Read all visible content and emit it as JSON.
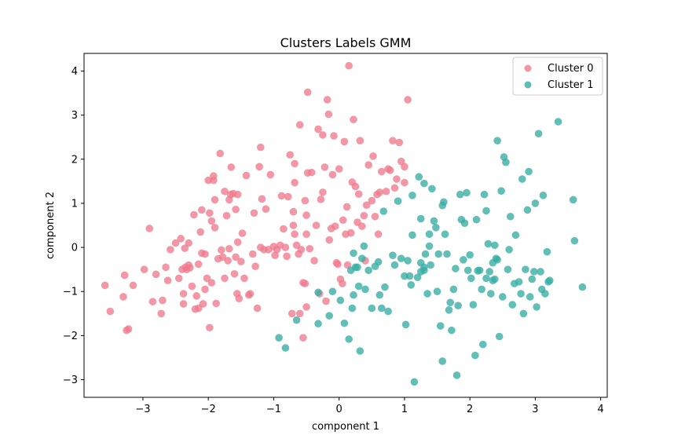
{
  "chart_data": {
    "type": "scatter",
    "title": "Clusters Labels GMM",
    "xlabel": "component 1",
    "ylabel": "component 2",
    "xlim": [
      -3.9,
      4.1
    ],
    "ylim": [
      -3.4,
      4.4
    ],
    "xticks": [
      -3,
      -2,
      -1,
      0,
      1,
      2,
      3,
      4
    ],
    "yticks": [
      -3,
      -2,
      -1,
      0,
      1,
      2,
      3,
      4
    ],
    "xtick_labels": [
      "−3",
      "−2",
      "−1",
      "0",
      "1",
      "2",
      "3",
      "4"
    ],
    "ytick_labels": [
      "−3",
      "−2",
      "−1",
      "0",
      "1",
      "2",
      "3",
      "4"
    ],
    "grid": false,
    "legend_position": "top-right",
    "series": [
      {
        "name": "Cluster 0",
        "color": "#f07a8d",
        "points": [
          [
            -3.58,
            -0.86
          ],
          [
            -3.5,
            -1.45
          ],
          [
            -3.3,
            -1.12
          ],
          [
            -3.28,
            -0.63
          ],
          [
            -3.25,
            -1.88
          ],
          [
            -3.22,
            -1.85
          ],
          [
            -3.15,
            -0.86
          ],
          [
            -2.98,
            -0.5
          ],
          [
            -2.9,
            0.43
          ],
          [
            -2.85,
            -1.23
          ],
          [
            -2.8,
            -0.61
          ],
          [
            -2.72,
            -1.5
          ],
          [
            -2.7,
            -1.2
          ],
          [
            -2.65,
            -0.45
          ],
          [
            -2.62,
            -0.75
          ],
          [
            -2.58,
            -0.05
          ],
          [
            -2.5,
            0.1
          ],
          [
            -2.45,
            -0.7
          ],
          [
            -2.42,
            0.2
          ],
          [
            -2.4,
            -0.5
          ],
          [
            -2.38,
            -1.05
          ],
          [
            -2.38,
            -1.28
          ],
          [
            -2.36,
            -0.02
          ],
          [
            -2.35,
            -0.45
          ],
          [
            -2.33,
            -0.5
          ],
          [
            -2.3,
            0.1
          ],
          [
            -2.3,
            -0.4
          ],
          [
            -2.28,
            -0.46
          ],
          [
            -2.25,
            -0.88
          ],
          [
            -2.22,
            0.74
          ],
          [
            -2.2,
            -1.4
          ],
          [
            -2.18,
            -1.1
          ],
          [
            -2.15,
            -0.38
          ],
          [
            -2.15,
            -1.38
          ],
          [
            -2.12,
            0.35
          ],
          [
            -2.1,
            0.85
          ],
          [
            -2.1,
            -0.13
          ],
          [
            -2.08,
            -1.28
          ],
          [
            -2.05,
            -0.95
          ],
          [
            -2.05,
            -0.15
          ],
          [
            -2.02,
            -0.7
          ],
          [
            -2,
            1.52
          ],
          [
            -1.98,
            -1.82
          ],
          [
            -1.98,
            0.78
          ],
          [
            -1.95,
            0.6
          ],
          [
            -1.95,
            -0.8
          ],
          [
            -1.92,
            1.62
          ],
          [
            -1.92,
            1.52
          ],
          [
            -1.9,
            0.45
          ],
          [
            -1.9,
            1.08
          ],
          [
            -1.88,
            -1.27
          ],
          [
            -1.85,
            -0.26
          ],
          [
            -1.82,
            2.13
          ],
          [
            -1.8,
            -0.06
          ],
          [
            -1.78,
            -0.22
          ],
          [
            -1.75,
            1.27
          ],
          [
            -1.75,
            -0.7
          ],
          [
            -1.72,
            0.72
          ],
          [
            -1.7,
            -0.3
          ],
          [
            -1.68,
            1.08
          ],
          [
            -1.68,
            -0.03
          ],
          [
            -1.66,
            1.2
          ],
          [
            -1.65,
            1.82
          ],
          [
            -1.62,
            1.22
          ],
          [
            -1.6,
            -0.6
          ],
          [
            -1.58,
            -0.22
          ],
          [
            -1.58,
            0.86
          ],
          [
            -1.56,
            -1.05
          ],
          [
            -1.55,
            1.2
          ],
          [
            -1.55,
            0.12
          ],
          [
            -1.53,
            -1.16
          ],
          [
            -1.5,
            -0.32
          ],
          [
            -1.48,
            0.32
          ],
          [
            -1.45,
            -0.7
          ],
          [
            -1.42,
            1.63
          ],
          [
            -1.38,
            -1.08
          ],
          [
            -1.36,
            -1.05
          ],
          [
            -1.32,
            -0.15
          ],
          [
            -1.3,
            0.78
          ],
          [
            -1.28,
            -0.43
          ],
          [
            -1.25,
            -1.38
          ],
          [
            -1.22,
            1.83
          ],
          [
            -1.2,
            2.27
          ],
          [
            -1.2,
            -0.0
          ],
          [
            -1.18,
            1.1
          ],
          [
            -1.15,
            -0.05
          ],
          [
            -1.12,
            0.87
          ],
          [
            -1.08,
            -0.05
          ],
          [
            -1.05,
            1.65
          ],
          [
            -1.0,
            0.02
          ],
          [
            -0.98,
            -0.18
          ],
          [
            -0.95,
            -0.05
          ],
          [
            -0.9,
            0.05
          ],
          [
            -0.88,
            1.17
          ],
          [
            -0.85,
            0.42
          ],
          [
            -0.82,
            0.0
          ],
          [
            -0.8,
            -0.2
          ],
          [
            -0.78,
            1.15
          ],
          [
            -0.75,
            2.1
          ],
          [
            -0.72,
            -1.5
          ],
          [
            -0.7,
            0.81
          ],
          [
            -0.7,
            0.5
          ],
          [
            -0.68,
            0.3
          ],
          [
            -0.68,
            1.47
          ],
          [
            -0.68,
            1.9
          ],
          [
            -0.65,
            0.05
          ],
          [
            -0.62,
            -0.15
          ],
          [
            -0.6,
            -1.5
          ],
          [
            -0.6,
            2.78
          ],
          [
            -0.58,
            -0.05
          ],
          [
            -0.55,
            -2.05
          ],
          [
            -0.55,
            -0.8
          ],
          [
            -0.52,
            -0.82
          ],
          [
            -0.52,
            1.06
          ],
          [
            -0.5,
            0.73
          ],
          [
            -0.5,
            0.3
          ],
          [
            -0.5,
            -1.35
          ],
          [
            -0.48,
            1.69
          ],
          [
            -0.48,
            3.52
          ],
          [
            -0.45,
            -0.03
          ],
          [
            -0.42,
            1.7
          ],
          [
            -0.38,
            -0.3
          ],
          [
            -0.35,
            0.5
          ],
          [
            -0.32,
            2.68
          ],
          [
            -0.3,
            -1.05
          ],
          [
            -0.28,
            1.09
          ],
          [
            -0.25,
            1.25
          ],
          [
            -0.25,
            2.55
          ],
          [
            -0.22,
            1.82
          ],
          [
            -0.2,
            -1.22
          ],
          [
            -0.18,
            3.35
          ],
          [
            -0.16,
            3.02
          ],
          [
            -0.15,
            0.17
          ],
          [
            -0.12,
            0.43
          ],
          [
            -0.1,
            1.65
          ],
          [
            -0.08,
            2.53
          ],
          [
            -0.06,
            0.48
          ],
          [
            -0.04,
            -0.35
          ],
          [
            -0.02,
            -0.38
          ],
          [
            0,
            1.78
          ],
          [
            0.02,
            -0.72
          ],
          [
            0.05,
            -0.82
          ],
          [
            0.06,
            0.62
          ],
          [
            0.08,
            2.4
          ],
          [
            0.1,
            0.3
          ],
          [
            0.12,
            0.92
          ],
          [
            0.13,
            -0.4
          ],
          [
            0.15,
            4.12
          ],
          [
            0.18,
            0.33
          ],
          [
            0.2,
            1.48
          ],
          [
            0.22,
            2.9
          ],
          [
            0.25,
            1.38
          ],
          [
            0.28,
            0.57
          ],
          [
            0.3,
            1.21
          ],
          [
            0.32,
            2.42
          ],
          [
            0.35,
            0.48
          ],
          [
            0.38,
            0.72
          ],
          [
            0.4,
            -0.3
          ],
          [
            0.42,
            0.96
          ],
          [
            0.45,
            1.87
          ],
          [
            0.5,
            1.06
          ],
          [
            0.52,
            2.07
          ],
          [
            0.55,
            0.7
          ],
          [
            0.58,
            1.2
          ],
          [
            0.6,
            0.3
          ],
          [
            0.62,
            1.25
          ],
          [
            0.65,
            1.72
          ],
          [
            0.72,
            1.27
          ],
          [
            0.75,
            1.78
          ],
          [
            0.78,
            1.75
          ],
          [
            0.82,
            2.42
          ],
          [
            0.85,
            1.35
          ],
          [
            0.88,
            1.55
          ],
          [
            0.92,
            2.38
          ],
          [
            0.95,
            1.95
          ],
          [
            1.0,
            1.47
          ],
          [
            1.05,
            3.35
          ],
          [
            1.0,
            1.83
          ]
        ]
      },
      {
        "name": "Cluster 1",
        "color": "#36ada4",
        "points": [
          [
            -0.92,
            -2.05
          ],
          [
            -0.82,
            -2.28
          ],
          [
            -0.65,
            -1.65
          ],
          [
            -0.32,
            -1.02
          ],
          [
            -0.32,
            -1.73
          ],
          [
            -0.15,
            -1.55
          ],
          [
            -0.1,
            -1.0
          ],
          [
            0.02,
            -1.2
          ],
          [
            0.08,
            -1.72
          ],
          [
            0.15,
            -2.08
          ],
          [
            0.18,
            -0.52
          ],
          [
            0.2,
            -1.38
          ],
          [
            0.22,
            -1.08
          ],
          [
            0.22,
            -0.13
          ],
          [
            0.25,
            -0.45
          ],
          [
            0.28,
            -0.45
          ],
          [
            0.3,
            -0.88
          ],
          [
            0.32,
            -2.35
          ],
          [
            0.35,
            -0.25
          ],
          [
            0.38,
            0.03
          ],
          [
            0.4,
            -0.95
          ],
          [
            0.45,
            -0.52
          ],
          [
            0.5,
            -1.38
          ],
          [
            0.55,
            -0.43
          ],
          [
            0.6,
            -0.33
          ],
          [
            0.62,
            -1.08
          ],
          [
            0.65,
            -1.38
          ],
          [
            0.68,
            0.82
          ],
          [
            0.7,
            -0.9
          ],
          [
            0.75,
            -1.45
          ],
          [
            0.82,
            -0.18
          ],
          [
            0.85,
            -0.4
          ],
          [
            0.9,
            1.05
          ],
          [
            0.95,
            -0.25
          ],
          [
            1.0,
            -0.65
          ],
          [
            1.02,
            -1.75
          ],
          [
            1.05,
            -0.3
          ],
          [
            1.08,
            -0.65
          ],
          [
            1.1,
            -0.85
          ],
          [
            1.12,
            0.28
          ],
          [
            1.12,
            1.18
          ],
          [
            1.15,
            -3.05
          ],
          [
            1.2,
            -0.68
          ],
          [
            1.22,
            1.6
          ],
          [
            1.25,
            0.65
          ],
          [
            1.25,
            -0.35
          ],
          [
            1.3,
            -0.45
          ],
          [
            1.3,
            1.45
          ],
          [
            1.32,
            -0.15
          ],
          [
            1.35,
            -1.05
          ],
          [
            1.38,
            0.03
          ],
          [
            1.38,
            0.3
          ],
          [
            1.4,
            -0.4
          ],
          [
            1.42,
            1.33
          ],
          [
            1.45,
            0.6
          ],
          [
            1.48,
            0.45
          ],
          [
            1.5,
            -1.0
          ],
          [
            1.52,
            -0.15
          ],
          [
            1.55,
            -1.78
          ],
          [
            1.58,
            0.95
          ],
          [
            1.58,
            -2.58
          ],
          [
            1.6,
            1.03
          ],
          [
            1.62,
            0.3
          ],
          [
            1.65,
            -0.15
          ],
          [
            1.68,
            -1.42
          ],
          [
            1.7,
            -1.25
          ],
          [
            1.72,
            -1.88
          ],
          [
            1.75,
            -0.95
          ],
          [
            1.78,
            -0.48
          ],
          [
            1.8,
            -2.9
          ],
          [
            1.82,
            -1.32
          ],
          [
            1.85,
            1.2
          ],
          [
            1.87,
            0.63
          ],
          [
            1.9,
            -0.28
          ],
          [
            1.92,
            0.55
          ],
          [
            1.95,
            1.24
          ],
          [
            1.97,
            -0.52
          ],
          [
            2.0,
            -0.17
          ],
          [
            2.02,
            -0.7
          ],
          [
            2.05,
            -1.3
          ],
          [
            2.08,
            -2.45
          ],
          [
            2.1,
            0.63
          ],
          [
            2.12,
            -0.53
          ],
          [
            2.15,
            -0.52
          ],
          [
            2.18,
            -0.95
          ],
          [
            2.2,
            -2.2
          ],
          [
            2.22,
            1.2
          ],
          [
            2.25,
            0.83
          ],
          [
            2.25,
            -0.7
          ],
          [
            2.28,
            0.08
          ],
          [
            2.3,
            -0.55
          ],
          [
            2.32,
            -1.05
          ],
          [
            2.35,
            -0.35
          ],
          [
            2.38,
            0.05
          ],
          [
            2.4,
            -0.25
          ],
          [
            2.42,
            2.42
          ],
          [
            2.45,
            -2.02
          ],
          [
            2.48,
            1.28
          ],
          [
            2.5,
            -1.12
          ],
          [
            2.52,
            2.05
          ],
          [
            2.55,
            1.93
          ],
          [
            2.58,
            -0.5
          ],
          [
            2.6,
            -0.05
          ],
          [
            2.62,
            0.7
          ],
          [
            2.65,
            -1.3
          ],
          [
            2.68,
            -0.82
          ],
          [
            2.7,
            0.28
          ],
          [
            2.75,
            -0.78
          ],
          [
            2.78,
            -1.05
          ],
          [
            2.8,
            1.55
          ],
          [
            2.82,
            -1.5
          ],
          [
            2.85,
            -0.5
          ],
          [
            2.88,
            0.85
          ],
          [
            2.9,
            1.72
          ],
          [
            2.92,
            -1.12
          ],
          [
            2.95,
            -0.72
          ],
          [
            2.98,
            -0.55
          ],
          [
            3.0,
            1.0
          ],
          [
            3.02,
            -1.35
          ],
          [
            3.05,
            2.58
          ],
          [
            3.08,
            -0.55
          ],
          [
            3.1,
            -0.95
          ],
          [
            3.12,
            1.18
          ],
          [
            3.15,
            -1.05
          ],
          [
            3.18,
            -0.1
          ],
          [
            3.2,
            -0.78
          ],
          [
            3.22,
            -0.75
          ],
          [
            3.35,
            2.85
          ],
          [
            3.58,
            1.08
          ],
          [
            3.6,
            0.15
          ],
          [
            3.72,
            -0.9
          ],
          [
            2.35,
            -0.75
          ],
          [
            2.38,
            -0.72
          ],
          [
            2.42,
            -0.28
          ],
          [
            1.25,
            -0.55
          ],
          [
            1.3,
            -0.52
          ]
        ]
      }
    ]
  }
}
